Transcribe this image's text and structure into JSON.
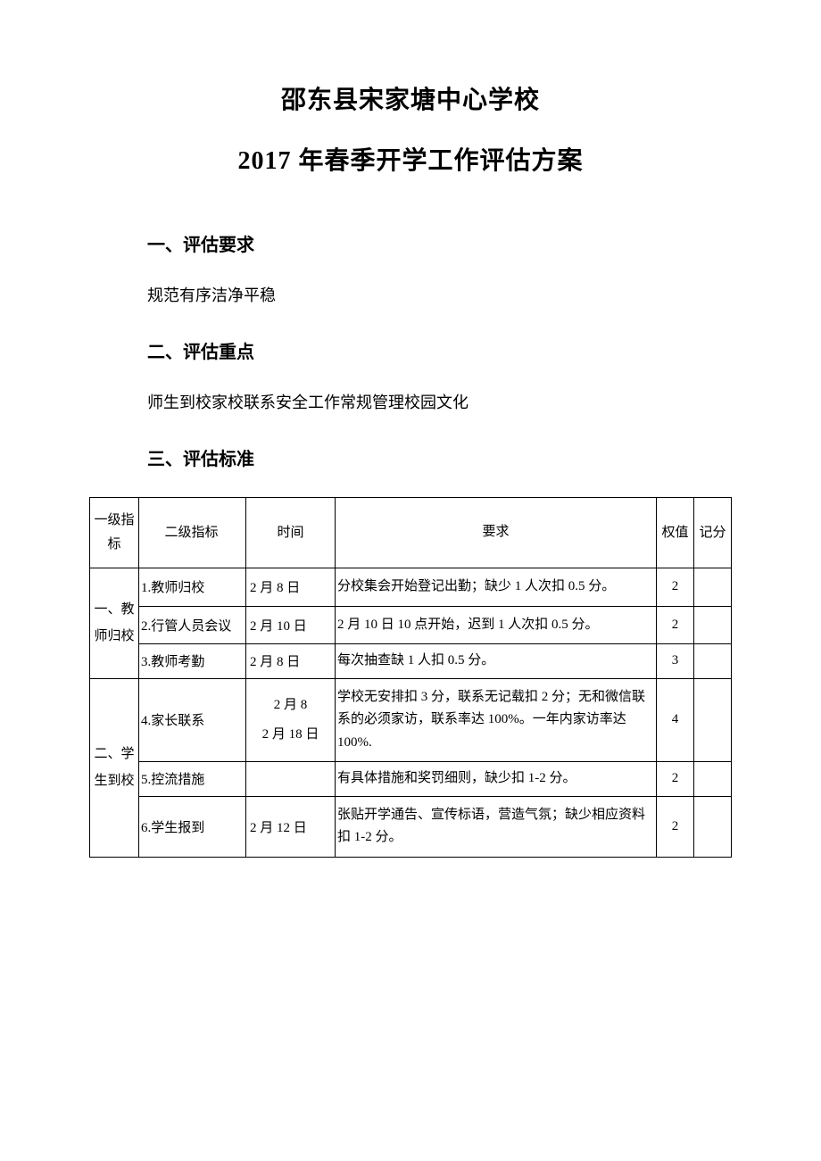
{
  "header": {
    "title1": "邵东县宋家塘中心学校",
    "title2": "2017 年春季开学工作评估方案"
  },
  "sections": {
    "s1": {
      "heading": "一、评估要求",
      "text": "规范有序洁净平稳"
    },
    "s2": {
      "heading": "二、评估重点",
      "text": "师生到校家校联系安全工作常规管理校园文化"
    },
    "s3": {
      "heading": "三、评估标准"
    }
  },
  "table": {
    "headers": {
      "c1": "一级指标",
      "c2": "二级指标",
      "c3": "时间",
      "c4": "要求",
      "c5": "权值",
      "c6": "记分"
    },
    "groups": [
      {
        "label": "一、教 师归校",
        "rows": [
          {
            "indicator": "1.教师归校",
            "time": "2 月 8 日",
            "requirement": "分校集会开始登记出勤；缺少 1 人次扣 0.5 分。",
            "weight": "2",
            "score": ""
          },
          {
            "indicator": "2.行管人员会议",
            "time": "2 月 10 日",
            "requirement": "2 月 10 日 10 点开始，迟到 1 人次扣 0.5 分。",
            "weight": "2",
            "score": ""
          },
          {
            "indicator": "3.教师考勤",
            "time": "2 月 8 日",
            "requirement": "每次抽查缺 1 人扣 0.5 分。",
            "weight": "3",
            "score": ""
          }
        ]
      },
      {
        "label": "二、学生到校",
        "rows": [
          {
            "indicator": "4.家长联系",
            "time": "2 月 8\n2 月 18 日",
            "requirement": "学校无安排扣 3 分，联系无记载扣 2 分；无和微信联系的必须家访，联系率达 100%。一年内家访率达 100%.",
            "weight": "4",
            "score": ""
          },
          {
            "indicator": "5.控流措施",
            "time": "",
            "requirement": "有具体措施和奖罚细则，缺少扣 1-2 分。",
            "weight": "2",
            "score": ""
          },
          {
            "indicator": "6.学生报到",
            "time": "2 月 12 日",
            "requirement": "张贴开学通告、宣传标语，营造气氛；缺少相应资料扣 1-2 分。",
            "weight": "2",
            "score": ""
          }
        ]
      }
    ]
  }
}
